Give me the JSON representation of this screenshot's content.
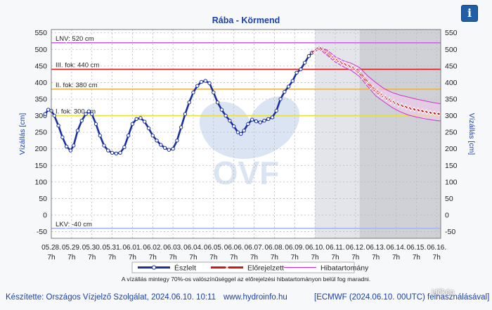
{
  "page": {
    "info_icon": "info-icon",
    "note": "A vízállás mintegy 70%-os valószínűséggel az előrejelzési hibatartományon belül fog maradni.",
    "footer": {
      "author": "Készítette: Országos Vízjelző Szolgálat, 2024.06.10. 10:11",
      "site": "www.hydroinfo.hu",
      "source": "[ECMWF (2024.06.10. 00UTC) felhasználásával]"
    },
    "watermark_text": "időkép",
    "watermark_logo": "OVF"
  },
  "chart_data": {
    "type": "line",
    "title": "Rába - Körmend",
    "ylabel": "Vízállás [cm]",
    "ylabel_right": "Vízállás [cm]",
    "ylim": [
      -70,
      560
    ],
    "yticks": [
      -50,
      0,
      50,
      100,
      150,
      200,
      250,
      300,
      350,
      400,
      450,
      500,
      550
    ],
    "xlim": [
      0,
      19.2
    ],
    "xticks": [
      {
        "x": 0,
        "date": "05.28.",
        "hour": "7h"
      },
      {
        "x": 1,
        "date": "05.29.",
        "hour": "7h"
      },
      {
        "x": 2,
        "date": "05.30.",
        "hour": "7h"
      },
      {
        "x": 3,
        "date": "05.31.",
        "hour": "7h"
      },
      {
        "x": 4,
        "date": "06.01.",
        "hour": "7h"
      },
      {
        "x": 5,
        "date": "06.02.",
        "hour": "7h"
      },
      {
        "x": 6,
        "date": "06.03.",
        "hour": "7h"
      },
      {
        "x": 7,
        "date": "06.04.",
        "hour": "7h"
      },
      {
        "x": 8,
        "date": "06.05.",
        "hour": "7h"
      },
      {
        "x": 9,
        "date": "06.06.",
        "hour": "7h"
      },
      {
        "x": 10,
        "date": "06.07.",
        "hour": "7h"
      },
      {
        "x": 11,
        "date": "06.08.",
        "hour": "7h"
      },
      {
        "x": 12,
        "date": "06.09.",
        "hour": "7h"
      },
      {
        "x": 13,
        "date": "06.10.",
        "hour": "7h"
      },
      {
        "x": 14,
        "date": "06.11.",
        "hour": "7h"
      },
      {
        "x": 15,
        "date": "06.12.",
        "hour": "7h"
      },
      {
        "x": 16,
        "date": "06.13.",
        "hour": "7h"
      },
      {
        "x": 17,
        "date": "06.14.",
        "hour": "7h"
      },
      {
        "x": 18,
        "date": "06.15.",
        "hour": "7h"
      },
      {
        "x": 19,
        "date": "06.16.",
        "hour": "7h"
      }
    ],
    "thresholds": [
      {
        "label": "LNV: 520 cm",
        "value": 520,
        "color": "#cc66e0"
      },
      {
        "label": "III. fok: 440 cm",
        "value": 440,
        "color": "#d62020"
      },
      {
        "label": "II. fok: 380 cm",
        "value": 380,
        "color": "#eab54a"
      },
      {
        "label": "I. fok: 300 cm",
        "value": 300,
        "color": "#e6df3c"
      },
      {
        "label": "LKV: -40 cm",
        "value": -40,
        "color": "#a9b7f0"
      }
    ],
    "shaded_regions": [
      {
        "from": 13.0,
        "to": 15.2,
        "color": "#e3e5ea"
      },
      {
        "from": 15.2,
        "to": 19.2,
        "color": "#cfd1d6"
      }
    ],
    "legend": [
      {
        "label": "Észlelt",
        "color": "#1a2fa0",
        "style": "observed"
      },
      {
        "label": "Előrejelzett",
        "color": "#d81414",
        "style": "forecast"
      },
      {
        "label": "Hibatartomány",
        "color": "#cc33cc",
        "style": "band"
      }
    ],
    "series": [
      {
        "name": "Észlelt",
        "color": "#1a2fa0",
        "points": [
          [
            -0.3,
            305
          ],
          [
            -0.15,
            318
          ],
          [
            0,
            315
          ],
          [
            0.15,
            300
          ],
          [
            0.35,
            270
          ],
          [
            0.55,
            235
          ],
          [
            0.75,
            207
          ],
          [
            0.95,
            195
          ],
          [
            1.1,
            210
          ],
          [
            1.3,
            255
          ],
          [
            1.5,
            285
          ],
          [
            1.7,
            305
          ],
          [
            1.85,
            313
          ],
          [
            2,
            305
          ],
          [
            2.2,
            275
          ],
          [
            2.4,
            240
          ],
          [
            2.6,
            210
          ],
          [
            2.8,
            195
          ],
          [
            3,
            188
          ],
          [
            3.2,
            186
          ],
          [
            3.4,
            188
          ],
          [
            3.6,
            205
          ],
          [
            3.8,
            240
          ],
          [
            4,
            275
          ],
          [
            4.2,
            290
          ],
          [
            4.4,
            293
          ],
          [
            4.6,
            282
          ],
          [
            4.8,
            262
          ],
          [
            5,
            240
          ],
          [
            5.2,
            225
          ],
          [
            5.4,
            212
          ],
          [
            5.6,
            203
          ],
          [
            5.8,
            197
          ],
          [
            6,
            200
          ],
          [
            6.2,
            225
          ],
          [
            6.4,
            265
          ],
          [
            6.6,
            305
          ],
          [
            6.8,
            340
          ],
          [
            7,
            370
          ],
          [
            7.2,
            390
          ],
          [
            7.4,
            402
          ],
          [
            7.6,
            405
          ],
          [
            7.8,
            398
          ],
          [
            8,
            370
          ],
          [
            8.2,
            340
          ],
          [
            8.4,
            318
          ],
          [
            8.6,
            300
          ],
          [
            8.8,
            285
          ],
          [
            9,
            268
          ],
          [
            9.2,
            250
          ],
          [
            9.35,
            245
          ],
          [
            9.5,
            255
          ],
          [
            9.7,
            275
          ],
          [
            9.9,
            288
          ],
          [
            10.1,
            283
          ],
          [
            10.3,
            280
          ],
          [
            10.5,
            285
          ],
          [
            10.7,
            290
          ],
          [
            10.9,
            295
          ],
          [
            11.1,
            315
          ],
          [
            11.3,
            350
          ],
          [
            11.5,
            372
          ],
          [
            11.7,
            388
          ],
          [
            11.9,
            405
          ],
          [
            12.1,
            430
          ],
          [
            12.3,
            440
          ],
          [
            12.5,
            460
          ],
          [
            12.7,
            480
          ],
          [
            12.85,
            490
          ]
        ]
      },
      {
        "name": "Előrejelzett",
        "color": "#d81414",
        "points": [
          [
            12.85,
            490
          ],
          [
            13.0,
            495
          ],
          [
            13.2,
            505
          ],
          [
            13.4,
            500
          ],
          [
            13.6,
            490
          ],
          [
            13.8,
            478
          ],
          [
            14,
            470
          ],
          [
            14.2,
            463
          ],
          [
            14.4,
            457
          ],
          [
            14.6,
            452
          ],
          [
            14.8,
            447
          ],
          [
            15,
            440
          ],
          [
            15.2,
            430
          ],
          [
            15.4,
            415
          ],
          [
            15.6,
            400
          ],
          [
            15.8,
            385
          ],
          [
            16,
            375
          ],
          [
            16.2,
            365
          ],
          [
            16.4,
            357
          ],
          [
            16.6,
            350
          ],
          [
            16.8,
            343
          ],
          [
            17,
            337
          ],
          [
            17.2,
            332
          ],
          [
            17.4,
            328
          ],
          [
            17.6,
            324
          ],
          [
            17.8,
            320
          ],
          [
            18,
            318
          ],
          [
            18.2,
            315
          ],
          [
            18.4,
            313
          ],
          [
            18.6,
            310
          ],
          [
            18.8,
            308
          ],
          [
            19,
            306
          ],
          [
            19.2,
            305
          ]
        ]
      },
      {
        "name": "Hibatartomány",
        "color": "#cc33cc",
        "upper": [
          [
            12.85,
            490
          ],
          [
            13.2,
            508
          ],
          [
            13.6,
            498
          ],
          [
            14,
            478
          ],
          [
            14.4,
            466
          ],
          [
            14.8,
            458
          ],
          [
            15.2,
            445
          ],
          [
            15.6,
            420
          ],
          [
            16,
            400
          ],
          [
            16.4,
            382
          ],
          [
            16.8,
            370
          ],
          [
            17.2,
            362
          ],
          [
            17.6,
            356
          ],
          [
            18,
            350
          ],
          [
            18.4,
            345
          ],
          [
            18.8,
            340
          ],
          [
            19.2,
            336
          ]
        ],
        "lower": [
          [
            12.85,
            490
          ],
          [
            13.2,
            502
          ],
          [
            13.6,
            482
          ],
          [
            14,
            462
          ],
          [
            14.4,
            448
          ],
          [
            14.8,
            436
          ],
          [
            15.2,
            418
          ],
          [
            15.6,
            388
          ],
          [
            16,
            360
          ],
          [
            16.4,
            342
          ],
          [
            16.8,
            325
          ],
          [
            17.2,
            312
          ],
          [
            17.6,
            302
          ],
          [
            18,
            296
          ],
          [
            18.4,
            291
          ],
          [
            18.8,
            287
          ],
          [
            19.2,
            284
          ]
        ]
      }
    ]
  }
}
